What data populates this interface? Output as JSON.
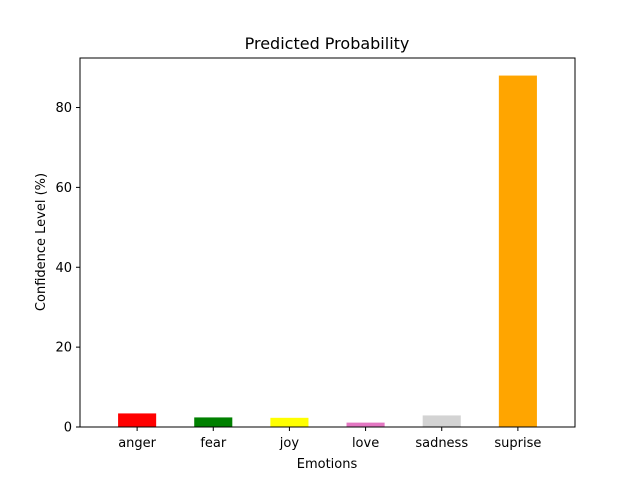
{
  "chart_data": {
    "type": "bar",
    "title": "Predicted Probability",
    "xlabel": "Emotions",
    "ylabel": "Confidence Level (%)",
    "categories": [
      "anger",
      "fear",
      "joy",
      "love",
      "sadness",
      "suprise"
    ],
    "values": [
      3.4,
      2.4,
      2.3,
      1.1,
      2.9,
      88.0
    ],
    "colors": [
      "#ff0000",
      "#008000",
      "#ffff00",
      "#e377c2",
      "#d3d3d3",
      "#ffa500"
    ],
    "ylim": [
      0,
      92.4
    ],
    "yticks": [
      0,
      20,
      40,
      60,
      80
    ],
    "grid": false,
    "legend": "none"
  }
}
